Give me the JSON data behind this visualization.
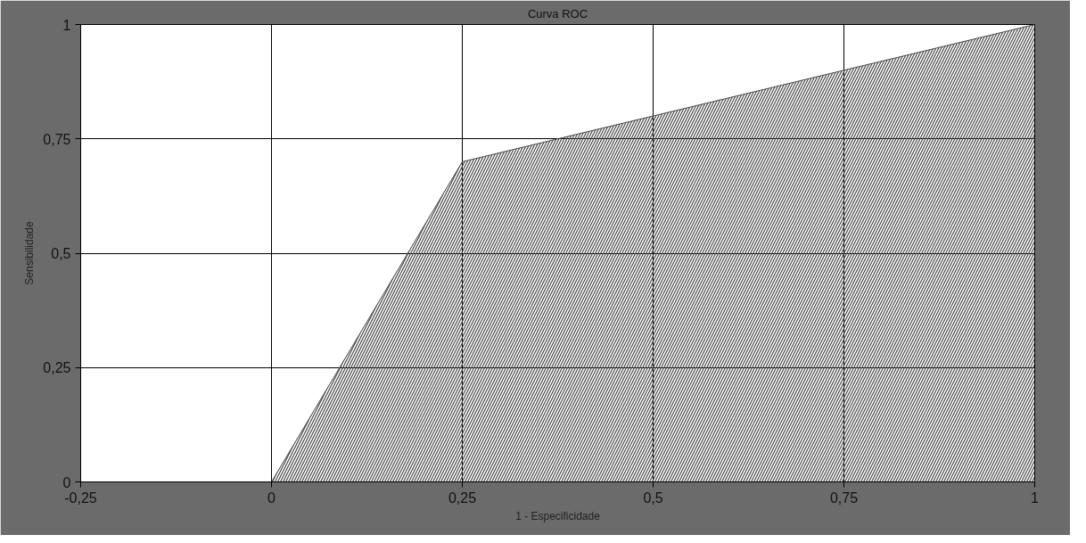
{
  "chart_data": {
    "type": "area",
    "title": "Curva ROC",
    "xlabel": "1 - Especificidade",
    "ylabel": "Sensibilidade",
    "x": [
      0,
      0.25,
      1
    ],
    "values": [
      0,
      0.7,
      1
    ],
    "color": "#444444",
    "xlim": [
      -0.25,
      1
    ],
    "ylim": [
      0,
      1
    ],
    "xticks": [
      {
        "value": -0.25,
        "label": "-0,25"
      },
      0,
      {
        "value": 0.25,
        "label": "0,25"
      },
      {
        "value": 0.5,
        "label": "0,5"
      },
      {
        "value": 0.75,
        "label": "0,75"
      },
      1
    ],
    "yticks": [
      0,
      {
        "value": 0.25,
        "label": "0,25"
      },
      {
        "value": 0.5,
        "label": "0,5"
      },
      {
        "value": 0.75,
        "label": "0,75"
      },
      1
    ],
    "grid": true
  }
}
